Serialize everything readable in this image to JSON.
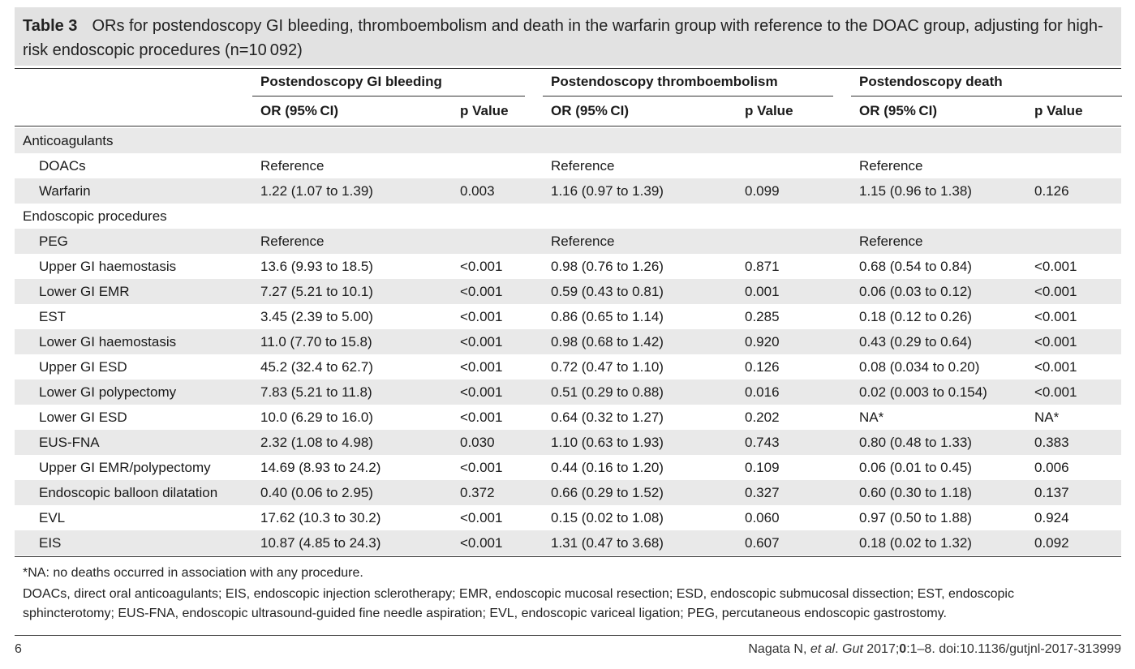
{
  "table": {
    "number": "Table 3",
    "caption": "ORs for postendoscopy GI bleeding, thromboembolism and death in the warfarin group with reference to the DOAC group, adjusting for high-risk endoscopic procedures (n=10 092)",
    "groups": [
      "Postendoscopy GI bleeding",
      "Postendoscopy thromboembolism",
      "Postendoscopy death"
    ],
    "subheaders": [
      "OR (95% CI)",
      "p Value",
      "OR (95% CI)",
      "p Value",
      "OR (95% CI)",
      "p Value"
    ],
    "rows": [
      {
        "type": "section",
        "label": "Anticoagulants",
        "cells": [
          "",
          "",
          "",
          "",
          "",
          ""
        ]
      },
      {
        "type": "row",
        "label": "DOACs",
        "cells": [
          "Reference",
          "",
          "Reference",
          "",
          "Reference",
          ""
        ]
      },
      {
        "type": "row",
        "label": "Warfarin",
        "cells": [
          "1.22 (1.07 to 1.39)",
          "0.003",
          "1.16 (0.97 to 1.39)",
          "0.099",
          "1.15 (0.96 to 1.38)",
          "0.126"
        ]
      },
      {
        "type": "section",
        "label": "Endoscopic procedures",
        "cells": [
          "",
          "",
          "",
          "",
          "",
          ""
        ]
      },
      {
        "type": "row",
        "label": "PEG",
        "cells": [
          "Reference",
          "",
          "Reference",
          "",
          "Reference",
          ""
        ]
      },
      {
        "type": "row",
        "label": "Upper GI haemostasis",
        "cells": [
          "13.6 (9.93 to 18.5)",
          "<0.001",
          "0.98 (0.76 to 1.26)",
          "0.871",
          "0.68 (0.54 to 0.84)",
          "<0.001"
        ]
      },
      {
        "type": "row",
        "label": "Lower GI EMR",
        "cells": [
          "7.27 (5.21 to 10.1)",
          "<0.001",
          "0.59 (0.43 to 0.81)",
          "0.001",
          "0.06 (0.03 to 0.12)",
          "<0.001"
        ]
      },
      {
        "type": "row",
        "label": "EST",
        "cells": [
          "3.45 (2.39 to 5.00)",
          "<0.001",
          "0.86 (0.65 to 1.14)",
          "0.285",
          "0.18 (0.12 to 0.26)",
          "<0.001"
        ]
      },
      {
        "type": "row",
        "label": "Lower GI haemostasis",
        "cells": [
          "11.0 (7.70 to 15.8)",
          "<0.001",
          "0.98 (0.68 to 1.42)",
          "0.920",
          "0.43 (0.29 to 0.64)",
          "<0.001"
        ]
      },
      {
        "type": "row",
        "label": "Upper GI ESD",
        "cells": [
          "45.2 (32.4 to 62.7)",
          "<0.001",
          "0.72 (0.47 to 1.10)",
          "0.126",
          "0.08 (0.034 to 0.20)",
          "<0.001"
        ]
      },
      {
        "type": "row",
        "label": "Lower GI polypectomy",
        "cells": [
          "7.83 (5.21 to 11.8)",
          "<0.001",
          "0.51 (0.29 to 0.88)",
          "0.016",
          "0.02 (0.003 to 0.154)",
          "<0.001"
        ]
      },
      {
        "type": "row",
        "label": "Lower GI ESD",
        "cells": [
          "10.0 (6.29 to 16.0)",
          "<0.001",
          "0.64 (0.32 to 1.27)",
          "0.202",
          "NA*",
          "NA*"
        ]
      },
      {
        "type": "row",
        "label": "EUS-FNA",
        "cells": [
          "2.32 (1.08 to 4.98)",
          "0.030",
          "1.10 (0.63 to 1.93)",
          "0.743",
          "0.80 (0.48 to 1.33)",
          "0.383"
        ]
      },
      {
        "type": "row",
        "label": "Upper GI EMR/polypectomy",
        "cells": [
          "14.69 (8.93 to 24.2)",
          "<0.001",
          "0.44 (0.16 to 1.20)",
          "0.109",
          "0.06 (0.01 to 0.45)",
          "0.006"
        ]
      },
      {
        "type": "row",
        "label": "Endoscopic balloon dilatation",
        "cells": [
          "0.40 (0.06 to 2.95)",
          "0.372",
          "0.66 (0.29 to 1.52)",
          "0.327",
          "0.60 (0.30 to 1.18)",
          "0.137"
        ]
      },
      {
        "type": "row",
        "label": "EVL",
        "cells": [
          "17.62 (10.3 to 30.2)",
          "<0.001",
          "0.15 (0.02 to 1.08)",
          "0.060",
          "0.97 (0.50 to 1.88)",
          "0.924"
        ]
      },
      {
        "type": "row",
        "label": "EIS",
        "cells": [
          "10.87 (4.85 to 24.3)",
          "<0.001",
          "1.31 (0.47 to 3.68)",
          "0.607",
          "0.18 (0.02 to 1.32)",
          "0.092"
        ]
      }
    ],
    "footnotes": [
      "*NA: no deaths occurred in association with any procedure.",
      "DOACs, direct oral anticoagulants; EIS, endoscopic injection sclerotherapy; EMR, endoscopic mucosal resection; ESD, endoscopic submucosal dissection; EST, endoscopic",
      "sphincterotomy; EUS-FNA, endoscopic ultrasound-guided fine needle aspiration; EVL, endoscopic variceal ligation; PEG, percutaneous endoscopic gastrostomy."
    ]
  },
  "page": {
    "number": "6",
    "citation": {
      "author": "Nagata N, ",
      "etal": "et al",
      "sep": ". ",
      "journal": "Gut",
      "year": " 2017;",
      "vol": "0",
      "rest": ":1–8. doi:10.1136/gutjnl-2017-313999"
    }
  }
}
